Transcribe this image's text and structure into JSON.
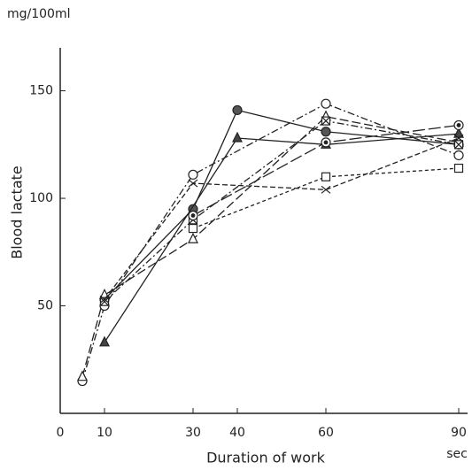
{
  "chart_data": {
    "type": "line",
    "y_unit": "mg/100ml",
    "ylabel": "Blood lactate",
    "xlabel": "Duration of work",
    "x_unit": "sec",
    "xlim": [
      0,
      92
    ],
    "ylim": [
      0,
      170
    ],
    "xticks": [
      0,
      10,
      30,
      40,
      60,
      90
    ],
    "yticks": [
      50,
      100,
      150
    ],
    "series": [
      {
        "marker": "circle-open",
        "dash": "8 3 2 3",
        "color": "#222",
        "x": [
          5,
          10,
          30,
          60,
          90
        ],
        "values": [
          15,
          50,
          111,
          144,
          120
        ]
      },
      {
        "marker": "circle-filled",
        "dash": "",
        "color": "#222",
        "x": [
          10,
          30,
          40,
          60,
          90
        ],
        "values": [
          53,
          95,
          141,
          131,
          125
        ]
      },
      {
        "marker": "triangle-filled",
        "dash": "",
        "color": "#222",
        "x": [
          10,
          40,
          60,
          90
        ],
        "values": [
          33,
          128,
          125,
          130
        ]
      },
      {
        "marker": "triangle-open",
        "dash": "10 4",
        "color": "#222",
        "x": [
          5,
          10,
          30,
          60,
          90
        ],
        "values": [
          17,
          55,
          81,
          138,
          126
        ]
      },
      {
        "marker": "square-x",
        "dash": "8 3 2 3",
        "color": "#222",
        "x": [
          10,
          30,
          60,
          90
        ],
        "values": [
          52,
          90,
          136,
          125
        ]
      },
      {
        "marker": "square-open",
        "dash": "4 3",
        "color": "#222",
        "x": [
          30,
          60,
          90
        ],
        "values": [
          86,
          110,
          114
        ]
      },
      {
        "marker": "x",
        "dash": "6 3",
        "color": "#222",
        "x": [
          10,
          30,
          60,
          90
        ],
        "values": [
          53,
          107,
          104,
          128
        ]
      },
      {
        "marker": "circle-dot",
        "dash": "14 4",
        "color": "#222",
        "x": [
          30,
          60,
          90
        ],
        "values": [
          92,
          126,
          134
        ]
      }
    ]
  }
}
